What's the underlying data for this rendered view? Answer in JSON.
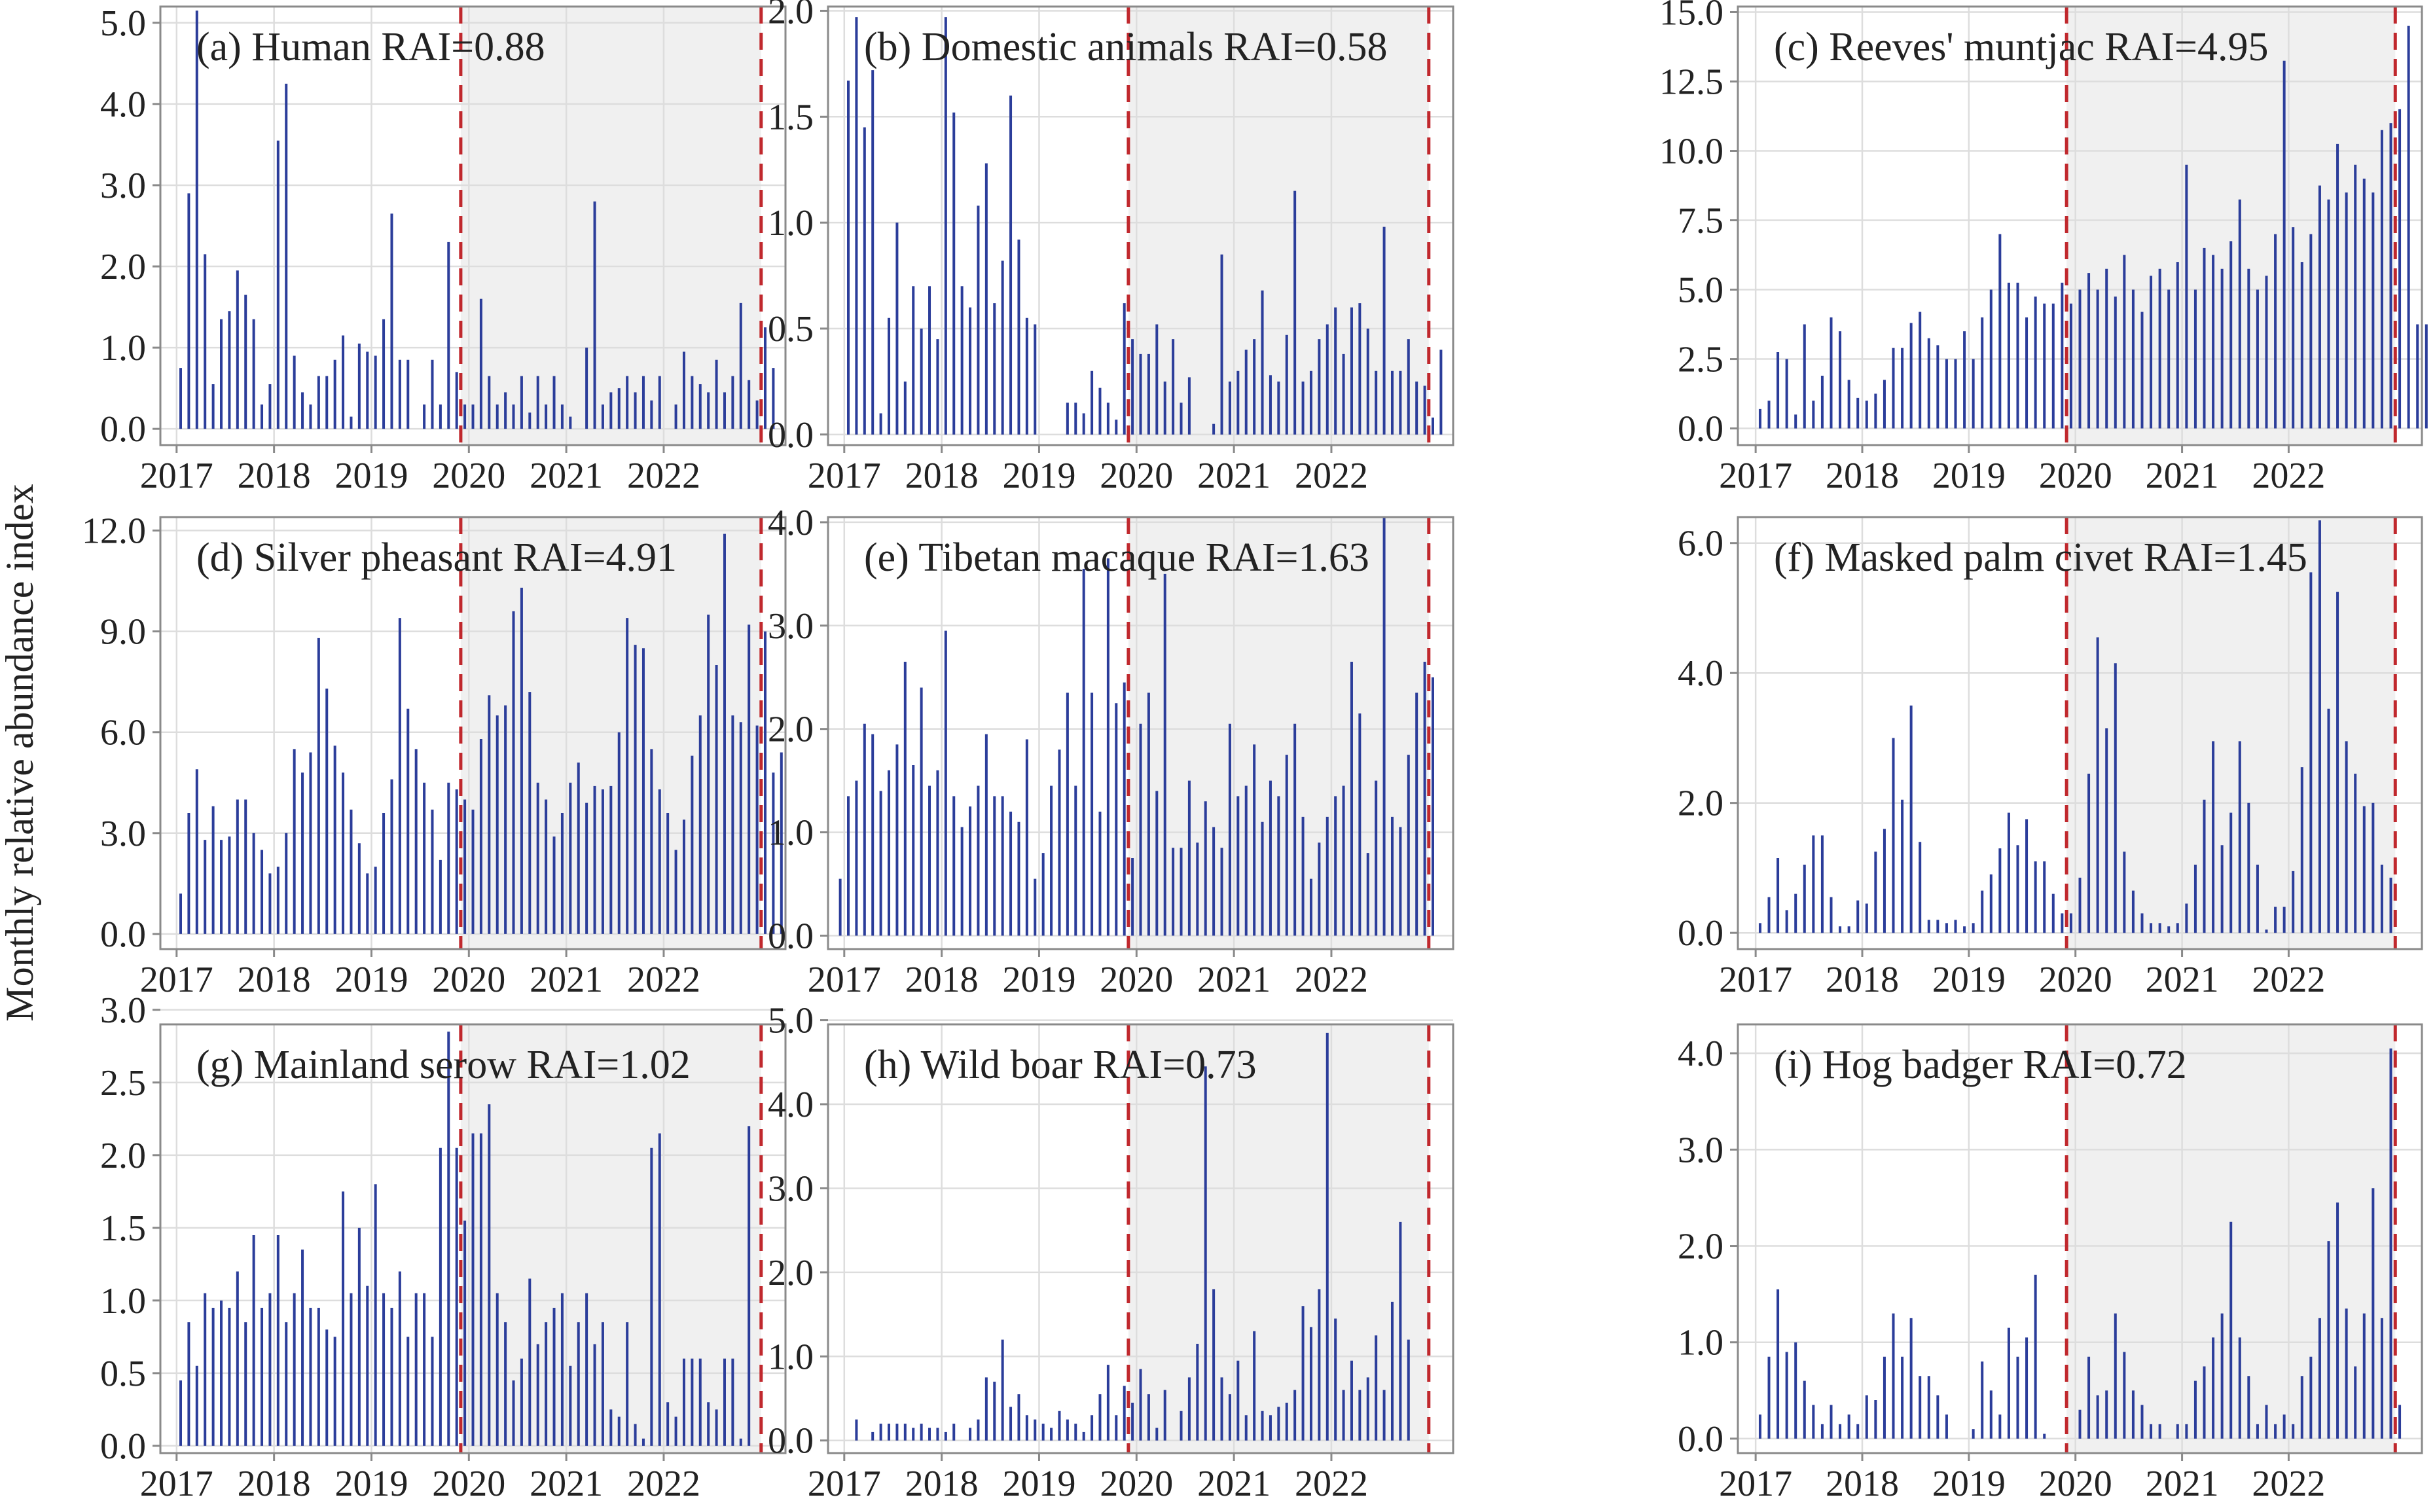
{
  "figure": {
    "ylabel": "Monthly relative abundance index",
    "colors": {
      "bar": "#2b3d9a",
      "shade": "#f0f0f0",
      "cutoff": "#c0282d",
      "grid": "#dddddd",
      "frame": "#8a8a8a"
    }
  },
  "chart_data": [
    {
      "type": "bar",
      "title": "(a) Human  RAI=0.88",
      "x_start": "2016-11",
      "x_end": "2023-04",
      "x_unit": "month",
      "xticks": [
        "2017",
        "2018",
        "2019",
        "2020",
        "2021",
        "2022"
      ],
      "ylim": [
        -0.2,
        5.2
      ],
      "yticks": [
        0,
        1,
        2,
        3,
        4,
        5
      ],
      "ytick_labels": [
        "0.0",
        "1.0",
        "2.0",
        "3.0",
        "4.0",
        "5.0"
      ],
      "shaded_from": "2019-12",
      "shaded_to": "2022-12",
      "start": "2017-01",
      "values": [
        0.75,
        2.9,
        5.15,
        2.15,
        0.55,
        1.35,
        1.45,
        1.95,
        1.65,
        1.35,
        0.3,
        0.55,
        3.55,
        4.25,
        0.9,
        0.45,
        0.3,
        0.65,
        0.65,
        0.85,
        1.15,
        0.15,
        1.05,
        0.95,
        0.9,
        1.35,
        2.65,
        0.85,
        0.85,
        0,
        0.3,
        0.85,
        0.3,
        2.3,
        0.7,
        0.3,
        0.3,
        1.6,
        0.65,
        0.3,
        0.45,
        0.3,
        0.65,
        0.2,
        0.65,
        0.3,
        0.65,
        0.3,
        0.15,
        0,
        1.0,
        2.8,
        0.3,
        0.45,
        0.5,
        0.65,
        0.45,
        0.65,
        0.35,
        0.65,
        0,
        0.3,
        0.95,
        0.65,
        0.55,
        0.45,
        0.85,
        0.45,
        0.65,
        1.55,
        0.6,
        0.35,
        1.25,
        0.75
      ]
    },
    {
      "type": "bar",
      "title": "(b) Domestic animals  RAI=0.58",
      "x_start": "2016-11",
      "x_end": "2023-04",
      "x_unit": "month",
      "xticks": [
        "2017",
        "2018",
        "2019",
        "2020",
        "2021",
        "2022"
      ],
      "ylim": [
        -0.05,
        2.02
      ],
      "yticks": [
        0,
        0.5,
        1.0,
        1.5,
        2.0
      ],
      "ytick_labels": [
        "0.0",
        "0.5",
        "1.0",
        "1.5",
        "2.0"
      ],
      "shaded_from": "2019-12",
      "shaded_to": "2022-12",
      "start": "2017-01",
      "values": [
        1.67,
        1.97,
        1.45,
        1.72,
        0.1,
        0.55,
        1.0,
        0.25,
        0.7,
        0.5,
        0.7,
        0.45,
        1.97,
        1.52,
        0.7,
        0.6,
        1.08,
        1.28,
        0.62,
        0.82,
        1.6,
        0.92,
        0.55,
        0.52,
        0,
        0,
        0,
        0.15,
        0.15,
        0.1,
        0.3,
        0.22,
        0.15,
        0.07,
        0.62,
        0.45,
        0.38,
        0.38,
        0.52,
        0.25,
        0.45,
        0.15,
        0.27,
        0,
        0,
        0.05,
        0.85,
        0.25,
        0.3,
        0.4,
        0.45,
        0.68,
        0.28,
        0.25,
        0.47,
        1.15,
        0.25,
        0.3,
        0.45,
        0.52,
        0.6,
        0.38,
        0.6,
        0.62,
        0.5,
        0.3,
        0.98,
        0.3,
        0.3,
        0.45,
        0.25,
        0.23,
        0.08,
        0.4
      ]
    },
    {
      "type": "bar",
      "title": "(c) Reeves' muntjac  RAI=4.95",
      "x_start": "2016-11",
      "x_end": "2023-04",
      "x_unit": "month",
      "xticks": [
        "2017",
        "2018",
        "2019",
        "2020",
        "2021",
        "2022"
      ],
      "ylim": [
        -0.6,
        15.2
      ],
      "yticks": [
        0,
        2.5,
        5.0,
        7.5,
        10.0,
        12.5,
        15.0
      ],
      "ytick_labels": [
        "0.0",
        "2.5",
        "5.0",
        "7.5",
        "10.0",
        "12.5",
        "15.0"
      ],
      "shaded_from": "2019-12",
      "shaded_to": "2022-12",
      "start": "2017-01",
      "values": [
        0.7,
        1.0,
        2.75,
        2.5,
        0.5,
        3.75,
        1.0,
        1.9,
        4.0,
        3.5,
        1.75,
        1.1,
        1.0,
        1.25,
        1.75,
        2.9,
        2.9,
        3.8,
        4.2,
        3.25,
        3.0,
        2.5,
        2.5,
        3.5,
        2.5,
        4.0,
        5.0,
        7.0,
        5.25,
        5.25,
        4.0,
        4.75,
        4.5,
        4.5,
        5.25,
        4.5,
        5.0,
        5.6,
        5.0,
        5.75,
        4.75,
        6.25,
        5.0,
        4.2,
        5.5,
        5.75,
        5.0,
        6.0,
        9.5,
        5.0,
        6.5,
        6.25,
        5.75,
        6.75,
        8.25,
        5.75,
        5.0,
        5.5,
        7.0,
        13.25,
        7.25,
        6.0,
        7.0,
        8.75,
        8.25,
        10.25,
        8.5,
        9.5,
        9.0,
        8.5,
        10.75,
        11.0,
        11.5,
        14.5,
        3.75,
        3.75
      ]
    },
    {
      "type": "bar",
      "title": "(d) Silver pheasant  RAI=4.91",
      "x_start": "2016-11",
      "x_end": "2023-04",
      "x_unit": "month",
      "xticks": [
        "2017",
        "2018",
        "2019",
        "2020",
        "2021",
        "2022"
      ],
      "ylim": [
        -0.45,
        12.4
      ],
      "yticks": [
        0,
        3,
        6,
        9,
        12
      ],
      "ytick_labels": [
        "0.0",
        "3.0",
        "6.0",
        "9.0",
        "12.0"
      ],
      "shaded_from": "2019-12",
      "shaded_to": "2022-12",
      "start": "2017-01",
      "values": [
        1.2,
        3.6,
        4.9,
        2.8,
        3.8,
        2.8,
        2.9,
        4.0,
        4.0,
        3.0,
        2.5,
        1.8,
        2.0,
        3.0,
        5.5,
        4.8,
        5.4,
        8.8,
        7.3,
        5.6,
        4.8,
        3.7,
        2.7,
        1.8,
        2.0,
        3.6,
        4.6,
        9.4,
        6.7,
        5.5,
        4.5,
        3.7,
        2.2,
        4.5,
        4.3,
        4.0,
        3.7,
        5.8,
        7.1,
        6.5,
        6.8,
        9.6,
        10.3,
        7.2,
        4.5,
        4.0,
        2.9,
        3.6,
        4.5,
        5.1,
        3.9,
        4.4,
        4.3,
        4.4,
        6.0,
        9.4,
        8.6,
        8.5,
        5.5,
        4.3,
        3.6,
        2.5,
        3.4,
        5.3,
        6.5,
        9.5,
        8.0,
        11.9,
        6.5,
        6.3,
        9.2,
        6.2,
        9.0,
        4.8,
        5.4
      ]
    },
    {
      "type": "bar",
      "title": "(e) Tibetan macaque  RAI=1.63",
      "x_start": "2016-11",
      "x_end": "2023-04",
      "x_unit": "month",
      "xticks": [
        "2017",
        "2018",
        "2019",
        "2020",
        "2021",
        "2022"
      ],
      "ylim": [
        -0.13,
        4.05
      ],
      "yticks": [
        0,
        1,
        2,
        3,
        4
      ],
      "ytick_labels": [
        "0.0",
        "1.0",
        "2.0",
        "3.0",
        "4.0"
      ],
      "shaded_from": "2019-12",
      "shaded_to": "2022-12",
      "start": "2016-12",
      "values": [
        0.55,
        1.35,
        1.5,
        2.05,
        1.95,
        1.4,
        1.6,
        1.85,
        2.65,
        1.65,
        2.4,
        1.45,
        1.6,
        2.95,
        1.35,
        1.05,
        1.25,
        1.45,
        1.95,
        1.35,
        1.35,
        1.2,
        1.1,
        1.9,
        0.55,
        0.8,
        1.45,
        1.8,
        2.35,
        1.45,
        3.55,
        2.35,
        1.2,
        3.65,
        2.25,
        2.45,
        0.75,
        2.05,
        2.35,
        1.4,
        3.5,
        0.85,
        0.85,
        1.5,
        0.9,
        1.3,
        1.05,
        0.85,
        2.05,
        1.35,
        1.45,
        1.85,
        1.1,
        1.5,
        1.35,
        1.75,
        2.05,
        1.15,
        0.55,
        0.9,
        1.15,
        1.35,
        1.45,
        2.65,
        2.15,
        0.8,
        1.5,
        4.05,
        1.15,
        1.05,
        1.75,
        2.35,
        2.65,
        2.5
      ]
    },
    {
      "type": "bar",
      "title": "(f) Masked palm civet  RAI=1.45",
      "x_start": "2016-11",
      "x_end": "2023-04",
      "x_unit": "month",
      "xticks": [
        "2017",
        "2018",
        "2019",
        "2020",
        "2021",
        "2022"
      ],
      "ylim": [
        -0.25,
        6.4
      ],
      "yticks": [
        0,
        2,
        4,
        6
      ],
      "ytick_labels": [
        "0.0",
        "2.0",
        "4.0",
        "6.0"
      ],
      "shaded_from": "2019-12",
      "shaded_to": "2022-12",
      "start": "2017-01",
      "values": [
        0.15,
        0.55,
        1.15,
        0.35,
        0.6,
        1.05,
        1.5,
        1.5,
        0.55,
        0.1,
        0.1,
        0.5,
        0.45,
        1.25,
        1.6,
        3.0,
        2.05,
        3.5,
        1.4,
        0.2,
        0.2,
        0.15,
        0.2,
        0.1,
        0.15,
        0.65,
        0.9,
        1.3,
        1.85,
        1.35,
        1.75,
        1.1,
        1.1,
        0.6,
        0.3,
        0.3,
        0.85,
        2.45,
        4.55,
        3.15,
        4.15,
        1.25,
        0.65,
        0.3,
        0.15,
        0.15,
        0.1,
        0.15,
        0.45,
        1.05,
        2.05,
        2.95,
        1.35,
        1.85,
        2.95,
        2.0,
        1.05,
        0.05,
        0.4,
        0.4,
        0.95,
        2.55,
        5.55,
        6.35,
        3.45,
        5.25,
        2.95,
        2.45,
        1.95,
        2.0,
        1.05,
        0.85
      ]
    },
    {
      "type": "bar",
      "title": "(g) Mainland serow  RAI=1.02",
      "x_start": "2016-11",
      "x_end": "2023-04",
      "x_unit": "month",
      "xticks": [
        "2017",
        "2018",
        "2019",
        "2020",
        "2021",
        "2022"
      ],
      "ylim": [
        -0.05,
        2.9
      ],
      "yticks": [
        0,
        0.5,
        1.0,
        1.5,
        2.0,
        2.5,
        3.0
      ],
      "ytick_labels": [
        "0.0",
        "0.5",
        "1.0",
        "1.5",
        "2.0",
        "2.5",
        "3.0"
      ],
      "shaded_from": "2019-12",
      "shaded_to": "2022-12",
      "start": "2017-01",
      "values": [
        0.45,
        0.85,
        0.55,
        1.05,
        0.95,
        1.0,
        0.95,
        1.2,
        0.85,
        1.45,
        0.95,
        1.05,
        1.45,
        0.85,
        1.05,
        1.35,
        0.95,
        0.95,
        0.8,
        0.75,
        1.75,
        1.05,
        1.5,
        1.1,
        1.8,
        1.05,
        0.95,
        1.2,
        0.75,
        1.05,
        1.05,
        0.75,
        2.05,
        2.85,
        2.05,
        1.55,
        2.15,
        2.15,
        2.35,
        1.05,
        0.85,
        0.45,
        0.6,
        1.15,
        0.7,
        0.85,
        0.95,
        1.05,
        0.55,
        0.85,
        1.05,
        0.7,
        0.85,
        0.25,
        0.2,
        0.85,
        0.15,
        0.05,
        2.05,
        2.15,
        0.3,
        0.2,
        0.6,
        0.6,
        0.6,
        0.3,
        0.25,
        0.6,
        0.6,
        0.05,
        2.2
      ]
    },
    {
      "type": "bar",
      "title": "(h) Wild boar  RAI=0.73",
      "x_start": "2016-11",
      "x_end": "2023-04",
      "x_unit": "month",
      "xticks": [
        "2017",
        "2018",
        "2019",
        "2020",
        "2021",
        "2022"
      ],
      "ylim": [
        -0.15,
        4.95
      ],
      "yticks": [
        0,
        1,
        2,
        3,
        4,
        5
      ],
      "ytick_labels": [
        "0.0",
        "1.0",
        "2.0",
        "3.0",
        "4.0",
        "5.0"
      ],
      "shaded_from": "2019-12",
      "shaded_to": "2022-12",
      "start": "2017-01",
      "values": [
        0,
        0.25,
        0,
        0.1,
        0.2,
        0.2,
        0.2,
        0.2,
        0.15,
        0.2,
        0.15,
        0.15,
        0.1,
        0.2,
        0,
        0.15,
        0.25,
        0.75,
        0.7,
        1.2,
        0.4,
        0.55,
        0.3,
        0.25,
        0.2,
        0.15,
        0.35,
        0.25,
        0.2,
        0.1,
        0.3,
        0.55,
        0.9,
        0.3,
        0.65,
        0.45,
        0.85,
        0.55,
        0.15,
        0.6,
        0,
        0.35,
        0.75,
        1.15,
        4.45,
        1.8,
        0.75,
        0.55,
        0.95,
        0.3,
        1.3,
        0.35,
        0.3,
        0.4,
        0.45,
        0.6,
        1.6,
        1.35,
        1.8,
        4.85,
        1.45,
        0.6,
        0.95,
        0.6,
        0.75,
        1.25,
        0.6,
        1.65,
        2.6,
        1.2
      ]
    },
    {
      "type": "bar",
      "title": "(i) Hog badger  RAI=0.72",
      "x_start": "2016-11",
      "x_end": "2023-04",
      "x_unit": "month",
      "xticks": [
        "2017",
        "2018",
        "2019",
        "2020",
        "2021",
        "2022"
      ],
      "ylim": [
        -0.15,
        4.3
      ],
      "yticks": [
        0,
        1,
        2,
        3,
        4
      ],
      "ytick_labels": [
        "0.0",
        "1.0",
        "2.0",
        "3.0",
        "4.0"
      ],
      "shaded_from": "2019-12",
      "shaded_to": "2022-12",
      "start": "2017-01",
      "values": [
        0.25,
        0.85,
        1.55,
        0.9,
        1.0,
        0.6,
        0.35,
        0.15,
        0.35,
        0.15,
        0.25,
        0.15,
        0.45,
        0.4,
        0.85,
        1.3,
        0.85,
        1.25,
        0.65,
        0.65,
        0.45,
        0.25,
        0,
        0,
        0.1,
        0.8,
        0.5,
        0.25,
        1.15,
        0.85,
        1.05,
        1.7,
        0.05,
        0,
        0,
        0,
        0.3,
        0.85,
        0.45,
        0.5,
        1.3,
        0.9,
        0.5,
        0.35,
        0.15,
        0.15,
        0,
        0.15,
        0.15,
        0.6,
        0.75,
        1.05,
        1.3,
        2.25,
        1.05,
        0.65,
        0.15,
        0.35,
        0.15,
        0.25,
        0.15,
        0.65,
        0.85,
        1.25,
        2.05,
        2.45,
        1.35,
        0.75,
        1.3,
        2.6,
        1.25,
        4.05,
        0.35
      ]
    }
  ]
}
